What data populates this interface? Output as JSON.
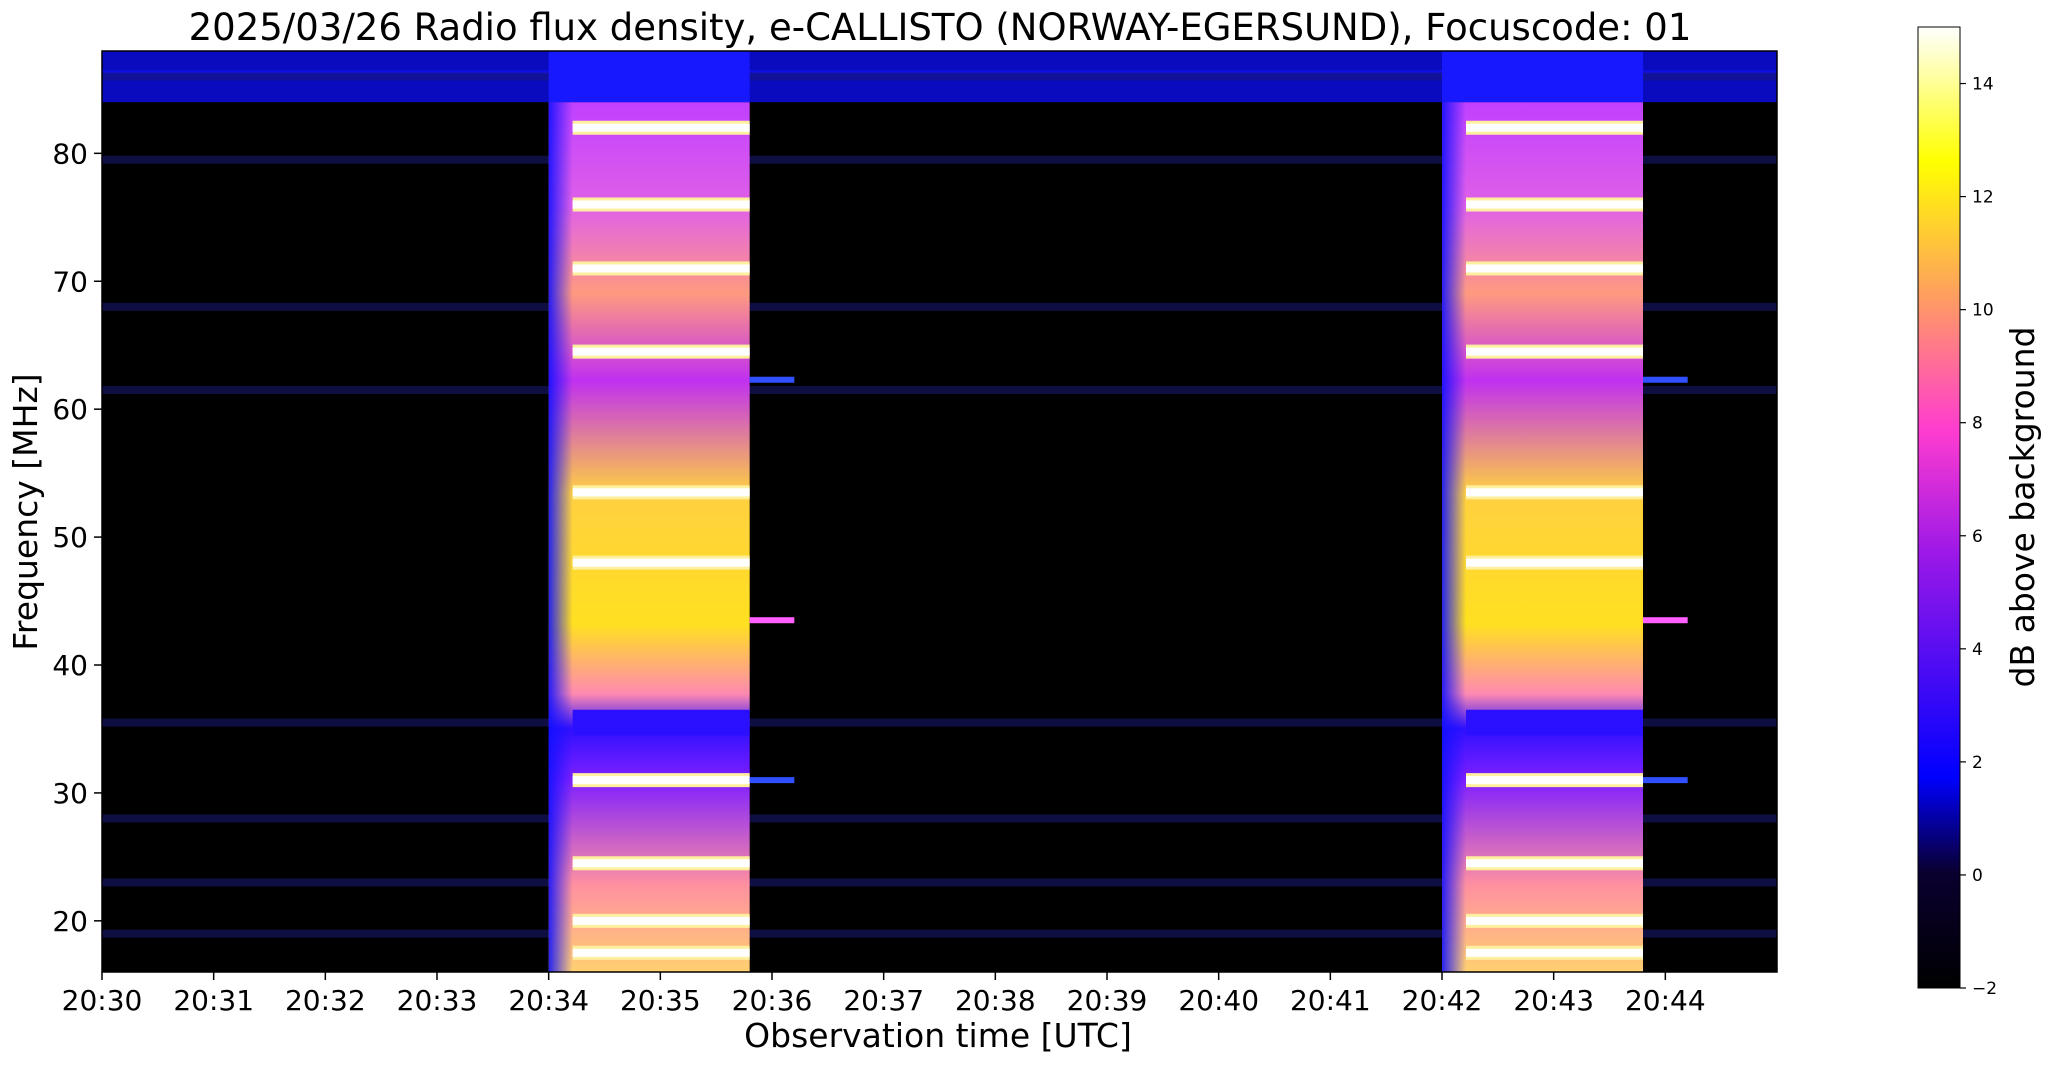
{
  "figure": {
    "title": "2025/03/26  Radio flux density, e-CALLISTO (NORWAY-EGERSUND), Focuscode: 01"
  },
  "chart_data": {
    "type": "heatmap",
    "title": "2025/03/26  Radio flux density, e-CALLISTO (NORWAY-EGERSUND), Focuscode: 01",
    "xlabel": "Observation time [UTC]",
    "ylabel": "Frequency [MHz]",
    "xlim_minutes_after_2030": [
      0,
      15
    ],
    "ylim": [
      16,
      88
    ],
    "x_ticks": [
      "20:30",
      "20:31",
      "20:32",
      "20:33",
      "20:34",
      "20:35",
      "20:36",
      "20:37",
      "20:38",
      "20:39",
      "20:40",
      "20:41",
      "20:42",
      "20:43",
      "20:44"
    ],
    "y_ticks": [
      20,
      30,
      40,
      50,
      60,
      70,
      80
    ],
    "colorbar": {
      "label": "dB above background",
      "range": [
        -2,
        15
      ],
      "ticks": [
        -2,
        0,
        2,
        4,
        6,
        8,
        10,
        12,
        14
      ],
      "colormap": [
        "#000000",
        "#0000ff",
        "#ff00ff",
        "#ffff00",
        "#ffffff"
      ]
    },
    "bursts": [
      {
        "start": "20:34",
        "end": "20:35:48"
      },
      {
        "start": "20:42",
        "end": "20:43:48"
      }
    ],
    "bright_lines_mhz": [
      17.5,
      20,
      24.5,
      31,
      48,
      53.5,
      64.5,
      71,
      76,
      82
    ],
    "background_bands_mhz": [
      19,
      23,
      28,
      35.5,
      61.5,
      68,
      79.5,
      86
    ],
    "narrowband_lines": [
      {
        "after_burst": 1,
        "freq_mhz": 43.5
      },
      {
        "after_burst": 1,
        "freq_mhz": 31
      },
      {
        "after_burst": 1,
        "freq_mhz": 62.3
      },
      {
        "after_burst": 2,
        "freq_mhz": 43.5
      },
      {
        "after_burst": 2,
        "freq_mhz": 31
      },
      {
        "after_burst": 2,
        "freq_mhz": 62.3
      }
    ]
  }
}
